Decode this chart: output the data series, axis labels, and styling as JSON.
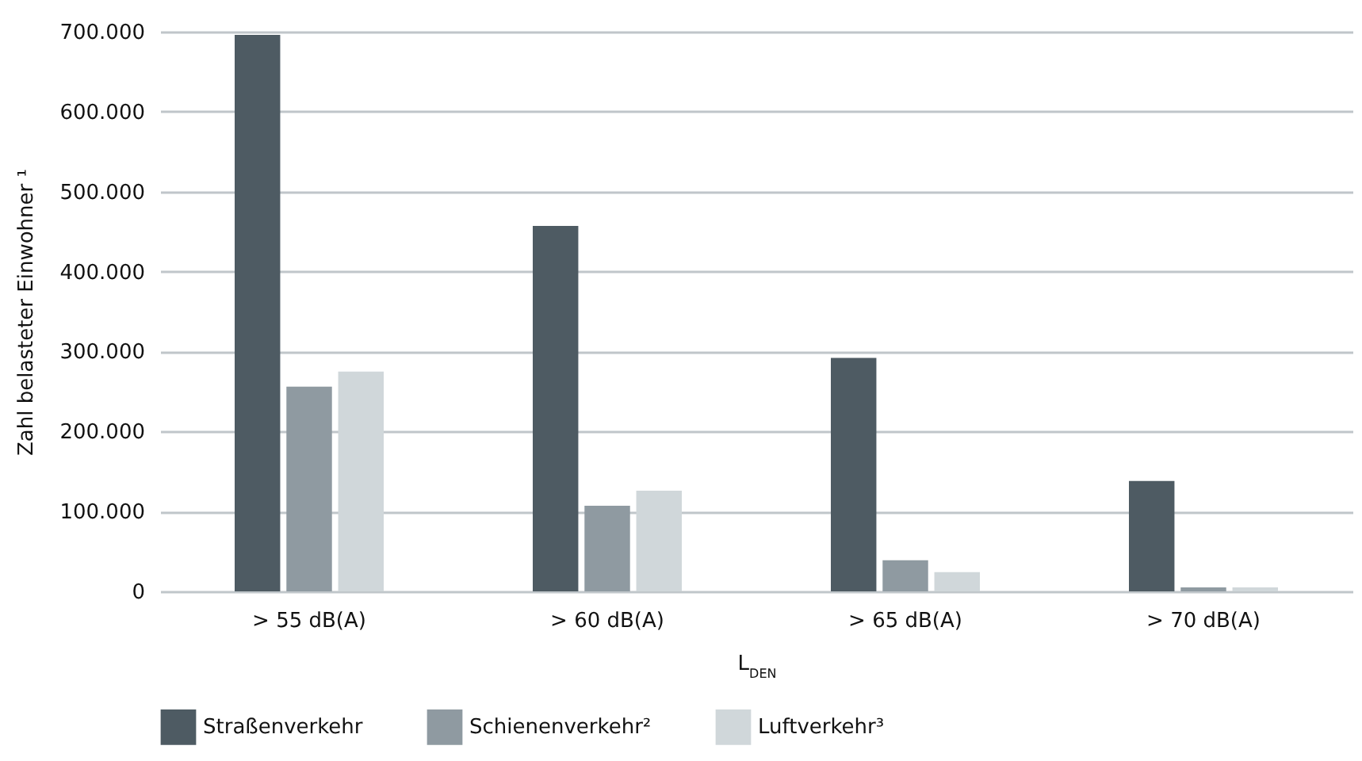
{
  "chart_data": {
    "type": "bar",
    "ylabel": "Zahl belasteter Einwohner ¹",
    "xlabel": "L$_{DEN}$",
    "categories": [
      "> 55 dB(A)",
      "> 60 dB(A)",
      "> 65 dB(A)",
      "> 70 dB(A)"
    ],
    "series": [
      {
        "name": "Straßenverkehr",
        "color": "#4e5b63",
        "values": [
          696000,
          457000,
          292000,
          138000
        ]
      },
      {
        "name": "Schienenverkehr²",
        "color": "#8f9aa1",
        "values": [
          256000,
          107000,
          39000,
          5000
        ]
      },
      {
        "name": "Luftverkehr³",
        "color": "#d0d7da",
        "values": [
          275000,
          126000,
          24000,
          5000
        ]
      }
    ],
    "ylim": [
      0,
      700000
    ],
    "yticks": [
      0,
      {
        "value": 100000,
        "label": "100.000"
      },
      {
        "value": 200000,
        "label": "200.000"
      },
      {
        "value": 300000,
        "label": "300.000"
      },
      {
        "value": 400000,
        "label": "400.000"
      },
      {
        "value": 500000,
        "label": "500.000"
      },
      {
        "value": 600000,
        "label": "600.000"
      },
      {
        "value": 700000,
        "label": "700.000"
      }
    ],
    "grid": "y",
    "legend": "bottom"
  }
}
